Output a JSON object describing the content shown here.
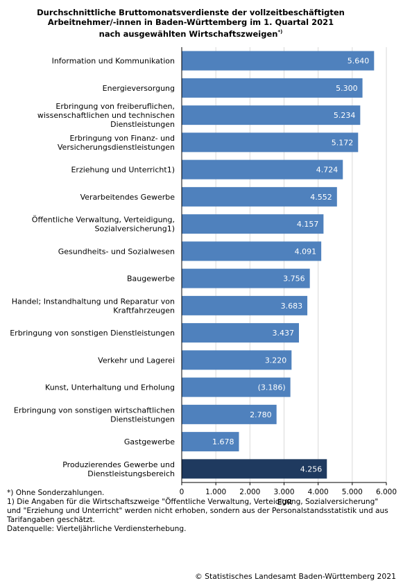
{
  "title_lines": [
    "Durchschnittliche Bruttomonatsverdienste der vollzeitbeschäftigten",
    "Arbeitnehmer/-innen in Baden-Württemberg im 1. Quartal 2021",
    "nach ausgewählten Wirtschaftszweigen"
  ],
  "title_marker": "*)",
  "chart_data": {
    "type": "bar",
    "orientation": "horizontal",
    "categories": [
      [
        "Information und Kommunikation"
      ],
      [
        "Energieversorgung"
      ],
      [
        "Erbringung von freiberuflichen,",
        "wissenschaftlichen und technischen",
        "Dienstleistungen"
      ],
      [
        "Erbringung von Finanz- und",
        "Versicherungsdienstleistungen"
      ],
      [
        "Erziehung und Unterricht1)"
      ],
      [
        "Verarbeitendes Gewerbe"
      ],
      [
        "Öffentliche Verwaltung, Verteidigung,",
        "Sozialversicherung1)"
      ],
      [
        "Gesundheits- und Sozialwesen"
      ],
      [
        "Baugewerbe"
      ],
      [
        "Handel; Instandhaltung und Reparatur von",
        "Kraftfahrzeugen"
      ],
      [
        "Erbringung von sonstigen Dienstleistungen"
      ],
      [
        "Verkehr und Lagerei"
      ],
      [
        "Kunst, Unterhaltung und Erholung"
      ],
      [
        "Erbringung von sonstigen wirtschaftlichen",
        "Dienstleistungen"
      ],
      [
        "Gastgewerbe"
      ],
      [
        "Produzierendes Gewerbe und",
        "Dienstleistungsbereich"
      ]
    ],
    "values": [
      5640,
      5300,
      5234,
      5172,
      4724,
      4552,
      4157,
      4091,
      3756,
      3683,
      3437,
      3220,
      3186,
      2780,
      1678,
      4256
    ],
    "value_labels": [
      "5.640",
      "5.300",
      "5.234",
      "5.172",
      "4.724",
      "4.552",
      "4.157",
      "4.091",
      "3.756",
      "3.683",
      "3.437",
      "3.220",
      "(3.186)",
      "2.780",
      "1.678",
      "4.256"
    ],
    "highlight_index": 15,
    "xlim": [
      0,
      6000
    ],
    "xticks": [
      0,
      1000,
      2000,
      3000,
      4000,
      5000,
      6000
    ],
    "xtick_labels": [
      "0",
      "1.000",
      "2.000",
      "3.000",
      "4.000",
      "5.000",
      "6.000"
    ],
    "xlabel": "EUR",
    "grid": true,
    "colors": {
      "bar": "#4f81bd",
      "highlight": "#1f3a5f",
      "grid": "#d9d9d9",
      "axis": "#000000"
    }
  },
  "footnotes": [
    "*) Ohne Sonderzahlungen.",
    "1) Die Angaben für die Wirtschaftszweige \"Öffentliche Verwaltung, Verteidigung, Sozialversicherung\"",
    "und \"Erziehung und Unterricht\" werden nicht erhoben, sondern aus der Personalstandsstatistik und aus",
    "Tarifangaben geschätzt.",
    "Datenquelle: Vierteljährliche Verdiensterhebung."
  ],
  "copyright": "© Statistisches Landesamt Baden-Württemberg 2021"
}
